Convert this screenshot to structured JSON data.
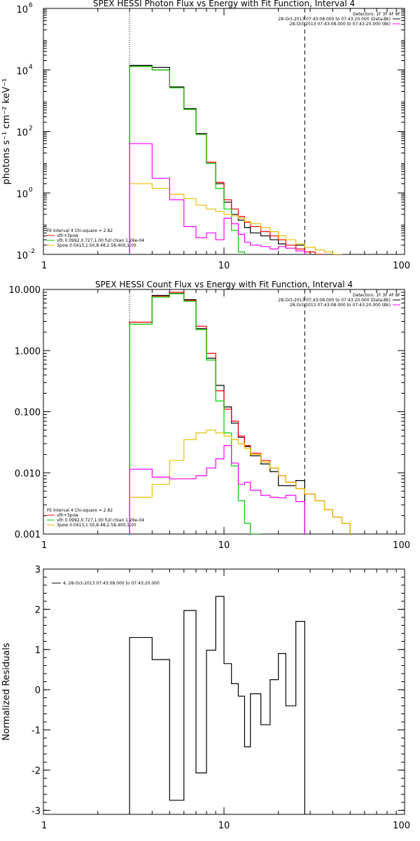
{
  "chart_data": [
    {
      "type": "line",
      "title": "SPEX HESSI Photon Flux vs Energy with Fit Function, Interval 4",
      "ylabel": "photons s⁻¹ cm⁻² keV⁻¹",
      "xlabel": "",
      "x_scale": "log",
      "y_scale": "log",
      "xlim": [
        1,
        100
      ],
      "ylim": [
        0.01,
        1000000
      ],
      "x_ticks": [
        {
          "value": 1,
          "label": "1"
        },
        {
          "value": 10,
          "label": "10"
        },
        {
          "value": 100,
          "label": "100"
        }
      ],
      "y_ticks": [
        {
          "value": 0.01,
          "base": "10",
          "exp": "-2"
        },
        {
          "value": 1,
          "base": "10",
          "exp": "0"
        },
        {
          "value": 100,
          "base": "10",
          "exp": "2"
        },
        {
          "value": 10000,
          "base": "10",
          "exp": "4"
        },
        {
          "value": 1000000,
          "base": "10",
          "exp": "6"
        }
      ],
      "legend_top": {
        "position": "top-right",
        "header": "Detectors: 1F 3F 4F 8F",
        "entries": [
          {
            "text": "28-Oct-2013 07:43:08.000 to 07:43:20.000 (Data-Bk)",
            "color": "#000000"
          },
          {
            "text": "28-Oct-2013 07:43:08.000 to 07:43:20.000 (Bk)",
            "color": "#ff00ff"
          }
        ]
      },
      "legend_bottom": {
        "position": "bottom-left",
        "header": "Fit Interval 4   Chi-square = 2.82",
        "entries": [
          {
            "text": "vth+3pow",
            "color": "#ff0000"
          },
          {
            "text": "vth 0.0992,0.727,1.00  full chian 1.26e-04",
            "color": "#00cc00"
          },
          {
            "text": "3pow 0.0413,1.50,8.48,2.58,400,1.00",
            "color": "#e6c000"
          }
        ]
      },
      "vlines": [
        {
          "x": 3,
          "style": "dotted"
        },
        {
          "x": 28,
          "style": "dashed"
        }
      ],
      "bin_edges": [
        3,
        4,
        5,
        6,
        7,
        8,
        9,
        10,
        11,
        12,
        13,
        14,
        16,
        18,
        20,
        22,
        25,
        28,
        32,
        36,
        40,
        45,
        50
      ],
      "series": [
        {
          "name": "Data-Bk",
          "color": "#000000",
          "values": [
            14000,
            12000,
            2800,
            550,
            85,
            9,
            2,
            0.5,
            0.2,
            0.13,
            0.075,
            0.05,
            0.04,
            0.03,
            0.022,
            0.016,
            0.02
          ]
        },
        {
          "name": "vth+3pow",
          "color": "#ff0000",
          "values": [
            13000,
            10000,
            2600,
            520,
            80,
            10,
            2.2,
            0.6,
            0.3,
            0.17,
            0.11,
            0.08,
            0.055,
            0.04,
            0.03,
            0.02,
            0.015,
            0.012,
            0.01
          ]
        },
        {
          "name": "vth",
          "color": "#00cc00",
          "values": [
            13000,
            10000,
            2600,
            520,
            80,
            9,
            1.4,
            0.3,
            0.06,
            0.012
          ]
        },
        {
          "name": "3pow",
          "color": "#e6c000",
          "values": [
            2.0,
            1.4,
            0.9,
            0.65,
            0.4,
            0.3,
            0.25,
            0.2,
            0.18,
            0.15,
            0.12,
            0.1,
            0.075,
            0.055,
            0.04,
            0.03,
            0.022,
            0.017,
            0.014,
            0.012,
            0.01,
            0.009
          ]
        },
        {
          "name": "Bk",
          "color": "#ff00ff",
          "values": [
            40,
            3,
            0.6,
            0.08,
            0.035,
            0.05,
            0.03,
            0.15,
            0.1,
            0.045,
            0.025,
            0.02,
            0.018,
            0.015,
            0.018,
            0.016,
            0.013
          ]
        }
      ]
    },
    {
      "type": "line",
      "title": "SPEX HESSI Count Flux vs Energy with Fit Function, Interval 4",
      "ylabel": "",
      "xlabel": "",
      "x_scale": "log",
      "y_scale": "log",
      "xlim": [
        1,
        100
      ],
      "ylim": [
        0.001,
        10
      ],
      "x_ticks": [
        {
          "value": 1,
          "label": "1"
        },
        {
          "value": 10,
          "label": "10"
        },
        {
          "value": 100,
          "label": "100"
        }
      ],
      "y_ticks": [
        {
          "value": 0.001,
          "label": "0.001"
        },
        {
          "value": 0.01,
          "label": "0.010"
        },
        {
          "value": 0.1,
          "label": "0.100"
        },
        {
          "value": 1,
          "label": "1.000"
        },
        {
          "value": 10,
          "label": "10.000"
        }
      ],
      "legend_top": {
        "position": "top-right",
        "header": "Detectors: 1F 3F 4F 8F",
        "entries": [
          {
            "text": "28-Oct-2013 07:43:08.000 to 07:43:20.000 (Data-Bk)",
            "color": "#000000"
          },
          {
            "text": "28-Oct-2013 07:43:08.000 to 07:43:20.000 (Bk)",
            "color": "#ff00ff"
          }
        ]
      },
      "legend_bottom": {
        "position": "bottom-left",
        "header": "Fit Interval 4   Chi-square = 2.82",
        "entries": [
          {
            "text": "vth+3pow",
            "color": "#ff0000"
          },
          {
            "text": "vth 0.0992,0.727,1.00  full chian 1.26e-04",
            "color": "#00cc00"
          },
          {
            "text": "3pow 0.0413,1.50,8.48,2.58,400,1.00",
            "color": "#e6c000"
          }
        ]
      },
      "vlines": [
        {
          "x": 3,
          "style": "dotted"
        },
        {
          "x": 28,
          "style": "dashed"
        }
      ],
      "bin_edges": [
        3,
        4,
        5,
        6,
        7,
        8,
        9,
        10,
        11,
        12,
        13,
        14,
        16,
        18,
        20,
        22,
        25,
        28,
        32,
        36,
        40,
        45,
        50
      ],
      "series": [
        {
          "name": "Data-Bk",
          "color": "#000000",
          "values": [
            2.9,
            8,
            8.6,
            6.8,
            2.3,
            0.75,
            0.27,
            0.12,
            0.065,
            0.038,
            0.027,
            0.019,
            0.014,
            0.0105,
            0.0062,
            0.0062,
            0.0075
          ]
        },
        {
          "name": "vth+3pow",
          "color": "#ff0000",
          "values": [
            2.9,
            7.7,
            9,
            6.6,
            2.5,
            0.9,
            0.22,
            0.11,
            0.07,
            0.04,
            0.028,
            0.021,
            0.016,
            0.012,
            0.009,
            0.007,
            0.0055,
            0.0045,
            0.0035,
            0.0025,
            0.0019,
            0.0015
          ]
        },
        {
          "name": "vth",
          "color": "#00cc00",
          "values": [
            2.7,
            7.5,
            8.5,
            6.4,
            2.2,
            0.7,
            0.15,
            0.045,
            0.013,
            0.0035,
            0.0015,
            0.001
          ]
        },
        {
          "name": "3pow",
          "color": "#e6c000",
          "values": [
            0.004,
            0.0065,
            0.016,
            0.035,
            0.045,
            0.05,
            0.045,
            0.04,
            0.035,
            0.03,
            0.025,
            0.02,
            0.015,
            0.012,
            0.009,
            0.007,
            0.0055,
            0.0045,
            0.0035,
            0.0025,
            0.0019,
            0.0015
          ]
        },
        {
          "name": "Bk",
          "color": "#ff00ff",
          "values": [
            0.0115,
            0.0085,
            0.008,
            0.008,
            0.009,
            0.012,
            0.017,
            0.028,
            0.0145,
            0.0065,
            0.007,
            0.0052,
            0.0043,
            0.004,
            0.0039,
            0.0043,
            0.0034
          ]
        }
      ]
    },
    {
      "type": "line",
      "title": "",
      "ylabel": "Normalized Residuals",
      "xlabel": "",
      "x_scale": "log",
      "y_scale": "linear",
      "xlim": [
        1,
        100
      ],
      "ylim": [
        -3.1,
        3
      ],
      "x_ticks": [
        {
          "value": 1,
          "label": "1"
        },
        {
          "value": 10,
          "label": "10"
        },
        {
          "value": 100,
          "label": "100"
        }
      ],
      "y_ticks": [
        {
          "value": -3,
          "label": "-3"
        },
        {
          "value": -2,
          "label": "-2"
        },
        {
          "value": -1,
          "label": "-1"
        },
        {
          "value": 0,
          "label": "0"
        },
        {
          "value": 1,
          "label": "1"
        },
        {
          "value": 2,
          "label": "2"
        },
        {
          "value": 3,
          "label": "3"
        }
      ],
      "legend_top": {
        "position": "top-left",
        "header": "",
        "entries": [
          {
            "text": "4, 28-Oct-2013 07:43:08.000 to 07:43:20.000",
            "color": "#000000"
          }
        ]
      },
      "vlines": [],
      "bin_edges": [
        3,
        4,
        5,
        6,
        7,
        8,
        9,
        10,
        11,
        12,
        13,
        14,
        16,
        18,
        20,
        22,
        25,
        28
      ],
      "series": [
        {
          "name": "residuals",
          "color": "#000000",
          "values": [
            1.3,
            0.75,
            -2.75,
            1.97,
            -2.07,
            0.98,
            2.32,
            0.65,
            0.15,
            -0.16,
            -1.42,
            -0.1,
            -0.87,
            0.25,
            0.9,
            -0.4,
            1.7
          ]
        }
      ]
    }
  ]
}
